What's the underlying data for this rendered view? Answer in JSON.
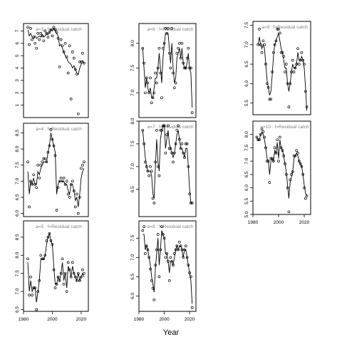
{
  "figure": {
    "xlabel": "Year",
    "background": "#ffffff",
    "line_color": "#000000",
    "title_color": "#808080"
  },
  "chart_data": [
    {
      "type": "line",
      "title": "a=3  :  f=Residual catch",
      "xlim": [
        1980,
        2025
      ],
      "ylim": [
        0,
        7.6
      ],
      "yticks": [
        1,
        2,
        3,
        4,
        5,
        6,
        7
      ],
      "xticks": [],
      "xtick_labels": [],
      "x": [
        1983,
        1984,
        1985,
        1986,
        1987,
        1988,
        1989,
        1990,
        1991,
        1992,
        1993,
        1994,
        1995,
        1996,
        1997,
        1998,
        1999,
        2000,
        2001,
        2002,
        2003,
        2004,
        2005,
        2006,
        2007,
        2008,
        2009,
        2010,
        2011,
        2012,
        2013,
        2014,
        2015,
        2016,
        2017,
        2018,
        2019,
        2020,
        2021,
        2022
      ],
      "observed": [
        7.3,
        5.9,
        7.2,
        6.3,
        6.5,
        6.0,
        5.6,
        6.8,
        6.3,
        6.8,
        6.6,
        6.2,
        7.0,
        6.8,
        6.5,
        6.9,
        7.1,
        6.6,
        7.3,
        7.1,
        6.9,
        6.4,
        4.1,
        6.3,
        5.8,
        5.3,
        6.0,
        4.9,
        3.6,
        5.8,
        1.5,
        5.3,
        4.8,
        3.9,
        3.5,
        0.3,
        4.5,
        4.5,
        5.2,
        4.4
      ],
      "fitted": [
        7.1,
        6.6,
        6.8,
        6.5,
        6.4,
        6.6,
        6.4,
        6.5,
        6.6,
        6.5,
        6.7,
        6.5,
        6.6,
        6.8,
        6.7,
        6.9,
        7.1,
        7.0,
        7.2,
        7.0,
        6.8,
        6.6,
        5.8,
        5.9,
        5.6,
        5.3,
        5.0,
        4.8,
        4.5,
        4.4,
        4.3,
        4.0,
        4.2,
        3.9,
        3.6,
        3.5,
        4.0,
        4.3,
        4.6,
        4.4
      ]
    },
    {
      "type": "line",
      "title": "a=6  :  f=Residual catch",
      "xlim": [
        1980,
        2025
      ],
      "ylim": [
        6.5,
        8.4
      ],
      "yticks": [
        7.0,
        7.5,
        8.0
      ],
      "xticks": [],
      "xtick_labels": [],
      "x": [
        1983,
        1984,
        1985,
        1986,
        1987,
        1988,
        1989,
        1990,
        1991,
        1992,
        1993,
        1994,
        1995,
        1996,
        1997,
        1998,
        1999,
        2000,
        2001,
        2002,
        2003,
        2004,
        2005,
        2006,
        2007,
        2008,
        2009,
        2010,
        2011,
        2012,
        2013,
        2014,
        2015,
        2016,
        2017,
        2018,
        2019,
        2020,
        2021,
        2022
      ],
      "observed": [
        7.9,
        7.6,
        7.0,
        7.3,
        7.2,
        7.0,
        7.3,
        6.8,
        6.9,
        7.0,
        7.4,
        7.2,
        7.5,
        7.9,
        7.4,
        6.9,
        7.9,
        8.0,
        8.3,
        8.2,
        8.3,
        7.8,
        7.5,
        8.3,
        7.4,
        7.1,
        7.2,
        7.8,
        7.9,
        8.0,
        7.7,
        8.0,
        7.6,
        7.5,
        7.5,
        7.7,
        7.9,
        7.5,
        7.5,
        6.6
      ],
      "fitted": [
        7.9,
        7.5,
        7.1,
        7.3,
        7.1,
        7.0,
        7.1,
        6.9,
        6.9,
        7.1,
        7.3,
        7.3,
        7.5,
        7.8,
        7.5,
        7.2,
        7.7,
        8.0,
        8.2,
        8.2,
        8.2,
        7.9,
        7.6,
        8.0,
        7.5,
        7.2,
        7.3,
        7.7,
        7.8,
        7.9,
        7.7,
        7.9,
        7.6,
        7.5,
        7.5,
        7.6,
        7.8,
        7.5,
        7.4,
        6.7
      ]
    },
    {
      "type": "line",
      "title": "a=9  :  f=Residual catch",
      "xlim": [
        1980,
        2025
      ],
      "ylim": [
        5.2,
        7.6
      ],
      "yticks": [
        5.5,
        6.0,
        6.5,
        7.0,
        7.5
      ],
      "xticks": [],
      "xtick_labels": [],
      "x": [
        1984,
        1985,
        1986,
        1987,
        1988,
        1989,
        1990,
        1991,
        1992,
        1993,
        1994,
        1995,
        1996,
        1997,
        1998,
        1999,
        2000,
        2001,
        2002,
        2003,
        2004,
        2005,
        2006,
        2007,
        2008,
        2009,
        2010,
        2011,
        2012,
        2013,
        2014,
        2015,
        2016,
        2017,
        2018,
        2019,
        2020,
        2021,
        2022
      ],
      "observed": [
        7.0,
        7.4,
        7.0,
        6.8,
        7.1,
        7.0,
        6.5,
        6.0,
        5.9,
        5.6,
        5.6,
        6.3,
        6.8,
        7.0,
        7.1,
        7.4,
        7.4,
        7.3,
        6.8,
        6.8,
        6.7,
        6.3,
        6.5,
        6.0,
        5.4,
        6.0,
        6.3,
        6.6,
        6.3,
        6.4,
        6.5,
        6.9,
        6.5,
        6.6,
        6.8,
        6.6,
        6.5,
        5.8,
        5.4
      ],
      "fitted": [
        7.0,
        7.2,
        7.0,
        6.9,
        7.0,
        6.9,
        6.5,
        6.1,
        5.9,
        5.7,
        5.8,
        6.2,
        6.7,
        7.0,
        7.1,
        7.2,
        7.3,
        7.1,
        6.9,
        6.8,
        6.6,
        6.4,
        6.4,
        6.0,
        5.8,
        6.0,
        6.3,
        6.5,
        6.4,
        6.4,
        6.5,
        6.8,
        6.6,
        6.6,
        6.7,
        6.6,
        6.4,
        5.9,
        5.3
      ]
    },
    {
      "type": "line",
      "title": "a=4  :  f=Residual catch",
      "xlim": [
        1980,
        2025
      ],
      "ylim": [
        5.9,
        8.8
      ],
      "yticks": [
        6.0,
        6.5,
        7.0,
        7.5,
        8.0,
        8.5
      ],
      "xticks": [],
      "xtick_labels": [],
      "x": [
        1983,
        1984,
        1985,
        1986,
        1987,
        1988,
        1989,
        1990,
        1991,
        1992,
        1993,
        1994,
        1995,
        1996,
        1997,
        1998,
        1999,
        2000,
        2001,
        2002,
        2003,
        2004,
        2005,
        2006,
        2007,
        2008,
        2009,
        2010,
        2011,
        2012,
        2013,
        2014,
        2015,
        2016,
        2017,
        2018,
        2019,
        2020,
        2021,
        2022
      ],
      "observed": [
        7.6,
        6.2,
        7.0,
        6.9,
        7.2,
        6.9,
        6.8,
        7.5,
        7.1,
        7.5,
        7.6,
        7.7,
        7.7,
        7.6,
        7.9,
        8.1,
        8.6,
        8.3,
        8.1,
        7.8,
        6.1,
        6.8,
        7.0,
        7.1,
        7.0,
        7.1,
        6.9,
        7.0,
        6.6,
        6.5,
        6.9,
        7.0,
        6.7,
        6.2,
        6.6,
        6.0,
        6.5,
        7.4,
        7.5,
        7.6
      ],
      "fitted": [
        7.3,
        6.6,
        7.0,
        6.9,
        7.1,
        6.9,
        6.9,
        7.3,
        7.2,
        7.4,
        7.5,
        7.6,
        7.6,
        7.6,
        7.9,
        8.1,
        8.5,
        8.3,
        8.1,
        7.9,
        6.6,
        6.9,
        7.0,
        7.0,
        7.0,
        7.0,
        6.9,
        6.9,
        6.7,
        6.6,
        6.9,
        6.9,
        6.7,
        6.4,
        6.5,
        6.2,
        6.6,
        7.1,
        7.3,
        7.4
      ]
    },
    {
      "type": "line",
      "title": "a=7  :  f=Residual catch",
      "xlim": [
        1980,
        2025
      ],
      "ylim": [
        5.9,
        8.0
      ],
      "yticks": [
        6.5,
        7.0,
        7.5,
        8.0
      ],
      "xticks": [],
      "xtick_labels": [],
      "x": [
        1983,
        1984,
        1985,
        1986,
        1987,
        1988,
        1989,
        1990,
        1991,
        1992,
        1993,
        1994,
        1995,
        1996,
        1997,
        1998,
        1999,
        2000,
        2001,
        2002,
        2003,
        2004,
        2005,
        2006,
        2007,
        2008,
        2009,
        2010,
        2011,
        2012,
        2013,
        2014,
        2015,
        2016,
        2017,
        2018,
        2019,
        2020,
        2021,
        2022
      ],
      "observed": [
        7.8,
        7.5,
        7.1,
        7.0,
        6.9,
        6.8,
        7.0,
        6.9,
        6.3,
        6.2,
        7.1,
        7.8,
        7.0,
        6.8,
        7.8,
        7.8,
        7.9,
        7.9,
        7.3,
        7.7,
        7.9,
        7.4,
        7.4,
        7.3,
        7.1,
        7.3,
        7.5,
        7.8,
        7.9,
        7.6,
        7.4,
        7.5,
        7.3,
        7.2,
        7.5,
        7.5,
        7.0,
        6.4,
        6.2,
        6.2
      ],
      "fitted": [
        7.8,
        7.5,
        7.2,
        7.0,
        6.9,
        6.9,
        6.9,
        6.8,
        6.4,
        6.3,
        7.0,
        7.6,
        7.1,
        6.9,
        7.6,
        7.8,
        7.9,
        7.9,
        7.4,
        7.6,
        7.8,
        7.5,
        7.4,
        7.3,
        7.2,
        7.3,
        7.5,
        7.7,
        7.8,
        7.6,
        7.4,
        7.4,
        7.3,
        7.2,
        7.4,
        7.4,
        7.0,
        6.5,
        6.2,
        6.2
      ]
    },
    {
      "type": "line",
      "title": "a=10  :  f=Residual catch",
      "xlim": [
        1980,
        2025
      ],
      "ylim": [
        5.0,
        8.5
      ],
      "yticks": [
        5.0,
        5.5,
        6.0,
        6.5,
        7.0,
        7.5,
        8.0
      ],
      "xticks": [
        1980,
        2000,
        2020
      ],
      "xtick_labels": [
        "1980",
        "2000",
        "2020"
      ],
      "x": [
        1983,
        1984,
        1985,
        1986,
        1987,
        1988,
        1989,
        1990,
        1991,
        1992,
        1993,
        1994,
        1995,
        1996,
        1997,
        1998,
        1999,
        2000,
        2001,
        2002,
        2003,
        2004,
        2005,
        2006,
        2007,
        2008,
        2009,
        2010,
        2011,
        2012,
        2013,
        2014,
        2015,
        2016,
        2017,
        2018,
        2019,
        2020,
        2021,
        2022
      ],
      "observed": [
        7.9,
        7.8,
        7.8,
        8.0,
        8.2,
        8.1,
        7.9,
        7.5,
        7.0,
        7.0,
        6.2,
        7.1,
        7.1,
        7.0,
        7.5,
        7.3,
        7.8,
        7.0,
        7.9,
        7.5,
        7.4,
        7.2,
        6.9,
        6.5,
        6.0,
        5.1,
        6.3,
        6.5,
        6.6,
        7.2,
        7.2,
        7.4,
        7.3,
        7.0,
        6.9,
        6.8,
        6.5,
        6.0,
        5.6,
        5.7
      ],
      "fitted": [
        7.9,
        7.8,
        7.8,
        8.0,
        8.1,
        8.0,
        7.8,
        7.5,
        7.1,
        7.0,
        6.5,
        7.0,
        7.1,
        7.0,
        7.4,
        7.3,
        7.7,
        7.1,
        7.8,
        7.5,
        7.4,
        7.2,
        6.9,
        6.6,
        6.1,
        5.6,
        6.2,
        6.4,
        6.6,
        7.1,
        7.2,
        7.3,
        7.2,
        7.0,
        6.9,
        6.8,
        6.5,
        6.1,
        5.8,
        5.7
      ]
    },
    {
      "type": "line",
      "title": "a=5  :  f=Residual catch",
      "xlim": [
        1980,
        2025
      ],
      "ylim": [
        6.45,
        8.95
      ],
      "yticks": [
        6.5,
        7.0,
        7.5,
        8.0,
        8.5
      ],
      "xticks": [
        1980,
        2000,
        2020
      ],
      "xtick_labels": [
        "1980",
        "2000",
        "2020"
      ],
      "x": [
        1983,
        1984,
        1985,
        1986,
        1987,
        1988,
        1989,
        1990,
        1991,
        1992,
        1993,
        1994,
        1995,
        1996,
        1997,
        1998,
        1999,
        2000,
        2001,
        2002,
        2003,
        2004,
        2005,
        2006,
        2007,
        2008,
        2009,
        2010,
        2011,
        2012,
        2013,
        2014,
        2015,
        2016,
        2017,
        2018,
        2019,
        2020,
        2021,
        2022
      ],
      "observed": [
        7.9,
        6.9,
        7.4,
        6.9,
        7.1,
        7.1,
        6.5,
        7.0,
        7.3,
        8.0,
        7.9,
        7.9,
        8.0,
        8.4,
        8.5,
        8.6,
        8.4,
        8.3,
        7.6,
        7.1,
        7.2,
        7.4,
        7.3,
        7.5,
        7.9,
        7.2,
        7.5,
        7.0,
        7.8,
        7.6,
        7.4,
        7.8,
        7.5,
        7.4,
        7.3,
        7.5,
        7.3,
        7.4,
        7.6,
        7.5
      ],
      "fitted": [
        7.8,
        7.0,
        7.3,
        7.0,
        7.1,
        7.1,
        6.7,
        7.0,
        7.3,
        7.9,
        7.9,
        7.9,
        8.0,
        8.3,
        8.5,
        8.6,
        8.4,
        8.3,
        7.7,
        7.2,
        7.2,
        7.4,
        7.3,
        7.5,
        7.8,
        7.3,
        7.5,
        7.1,
        7.7,
        7.6,
        7.4,
        7.7,
        7.5,
        7.4,
        7.3,
        7.5,
        7.3,
        7.4,
        7.5,
        7.4
      ]
    },
    {
      "type": "line",
      "title": "a=8  :  f=Residual catch",
      "xlim": [
        1980,
        2025
      ],
      "ylim": [
        5.6,
        7.95
      ],
      "yticks": [
        6.0,
        6.5,
        7.0,
        7.5
      ],
      "xticks": [
        1980,
        2000,
        2020
      ],
      "xtick_labels": [
        "1980",
        "2000",
        "2020"
      ],
      "x": [
        1983,
        1984,
        1985,
        1986,
        1987,
        1988,
        1989,
        1990,
        1991,
        1992,
        1993,
        1994,
        1995,
        1996,
        1997,
        1998,
        1999,
        2000,
        2001,
        2002,
        2003,
        2004,
        2005,
        2006,
        2007,
        2008,
        2009,
        2010,
        2011,
        2012,
        2013,
        2014,
        2015,
        2016,
        2017,
        2018,
        2019,
        2020,
        2021,
        2022
      ],
      "observed": [
        7.7,
        7.8,
        7.1,
        7.3,
        7.2,
        7.0,
        6.7,
        6.4,
        6.2,
        5.9,
        6.8,
        7.2,
        7.6,
        6.5,
        7.2,
        7.8,
        7.6,
        7.5,
        7.0,
        7.1,
        6.9,
        6.4,
        7.0,
        6.9,
        6.8,
        7.1,
        7.2,
        7.3,
        7.2,
        7.4,
        7.3,
        7.2,
        7.0,
        7.2,
        7.3,
        7.0,
        6.8,
        6.6,
        6.5,
        5.7
      ],
      "fitted": [
        7.6,
        7.6,
        7.2,
        7.3,
        7.2,
        7.0,
        6.8,
        6.5,
        6.3,
        6.1,
        6.7,
        7.1,
        7.5,
        6.8,
        7.2,
        7.7,
        7.6,
        7.5,
        7.1,
        7.1,
        6.9,
        6.6,
        6.9,
        6.9,
        6.8,
        7.0,
        7.2,
        7.3,
        7.2,
        7.3,
        7.3,
        7.2,
        7.0,
        7.2,
        7.2,
        7.0,
        6.8,
        6.6,
        6.4,
        5.8
      ]
    }
  ]
}
